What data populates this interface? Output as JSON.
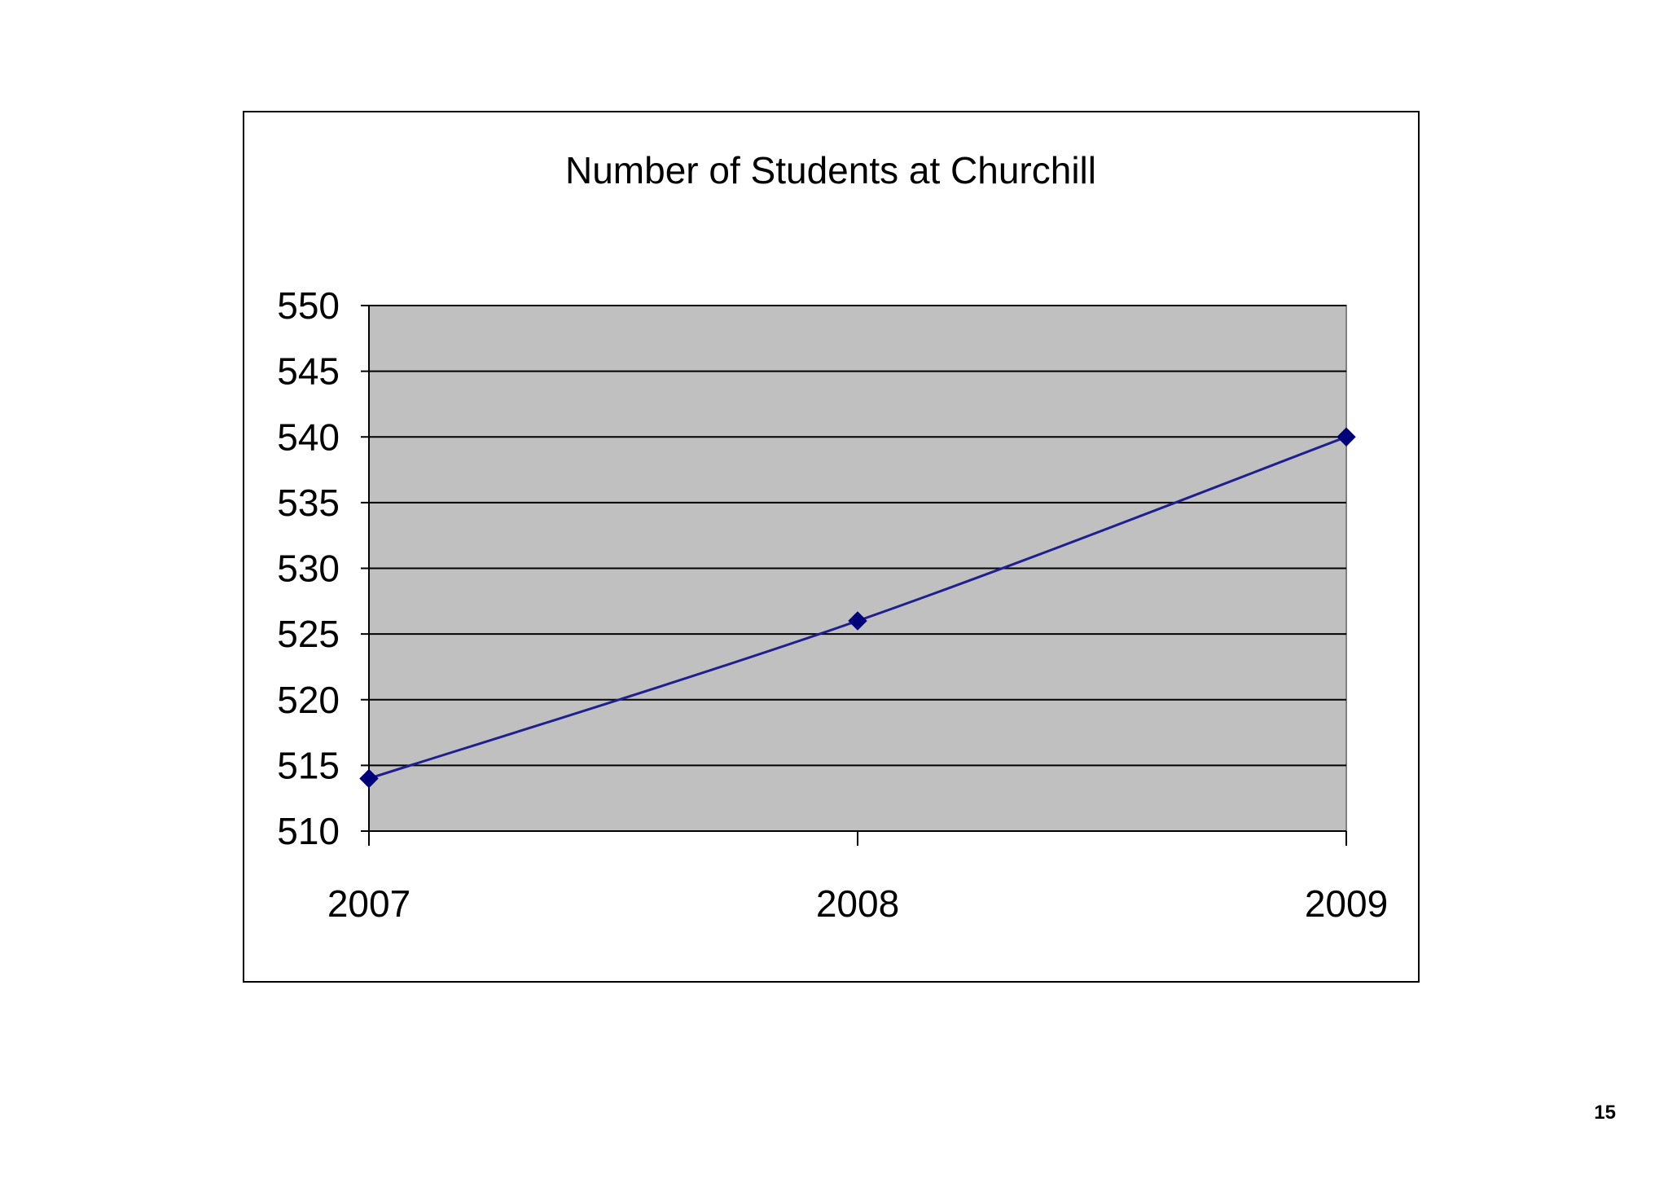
{
  "page": {
    "number": "15"
  },
  "colors": {
    "plot_background": "#c0c0c0",
    "gridline": "#000000",
    "series_line": "#1f1f8f",
    "marker": "#00007a",
    "frame": "#000000"
  },
  "chart_data": {
    "type": "line",
    "title": "Number of Students at Churchill",
    "xlabel": "",
    "ylabel": "",
    "categories": [
      "2007",
      "2008",
      "2009"
    ],
    "series": [
      {
        "values": [
          514,
          526,
          540
        ],
        "marker": "diamond",
        "smoothed": true
      }
    ],
    "ylim": [
      510,
      550
    ],
    "ytick_step": 5,
    "yticks": [
      "550",
      "545",
      "540",
      "535",
      "530",
      "525",
      "520",
      "515",
      "510"
    ],
    "grid": true,
    "legend": "none"
  }
}
